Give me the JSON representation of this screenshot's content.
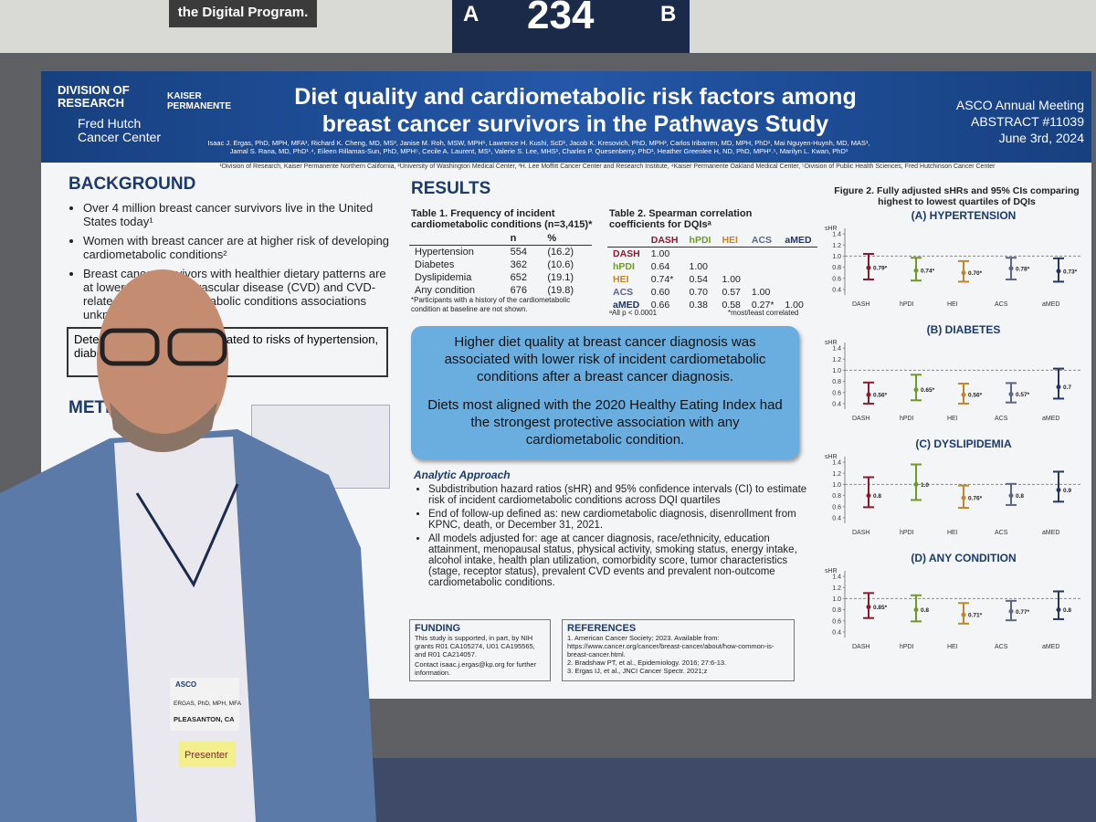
{
  "top_signs": {
    "program": "the Digital Program.",
    "board_left": "A",
    "board_number": "234",
    "board_right": "B"
  },
  "poster": {
    "header": {
      "org1": "DIVISION OF RESEARCH",
      "org2": "KAISER PERMANENTE",
      "org3": "Fred Hutch Cancer Center",
      "title_line1": "Diet quality and cardiometabolic risk factors among",
      "title_line2": "breast cancer survivors in the Pathways Study",
      "authors_line1": "Isaac J. Ergas, PhD, MPH, MFA¹, Richard K. Cheng, MD, MS², Janise M. Roh, MSW, MPH¹, Lawrence H. Kushi, ScD¹, Jacob K. Kresovich, PhD, MPH³, Carlos Iribarren, MD, MPH, PhD¹, Mai Nguyen-Huynh, MD, MAS¹,",
      "authors_line2": "Jamal S. Rana, MD, PhD¹˒⁴, Eileen Rillamas-Sun, PhD, MPH⁵, Cecile A. Laurent, MS¹, Valerie S. Lee, MHS¹, Charles P. Quesenberry, PhD¹, Heather Greenlee H, ND, PhD, MPH²˒⁵, Marilyn L. Kwan, PhD¹",
      "meeting": "ASCO Annual Meeting",
      "abstract": "ABSTRACT #11039",
      "date": "June 3rd, 2024",
      "affiliations": "¹Division of Research, Kaiser Permanente Northern California, ²University of Washington Medical Center, ³H. Lee Moffitt Cancer Center and Research Institute, ⁴Kaiser Permanente Oakland Medical Center, ⁵Division of Public Health Sciences, Fred Hutchinson Cancer Center"
    },
    "background": {
      "heading": "BACKGROUND",
      "bullets": [
        "Over 4 million breast cancer survivors live in the United States today¹",
        "Women with breast cancer are at higher risk of developing cardiometabolic conditions²",
        "Breast cancer survivors with healthier dietary patterns are at lower risk of cardiovascular disease (CVD) and CVD-related risk of cardiometabolic conditions associations unknown.³"
      ],
      "objective": "Determine if diet quality is related to risks of hypertension, diabetes and dyslipidemia."
    },
    "methods": {
      "heading": "METHODS"
    },
    "results": {
      "heading": "RESULTS",
      "table1": {
        "caption": "Table 1. Frequency of incident cardiometabolic conditions (n=3,415)*",
        "columns": [
          "n",
          "%"
        ],
        "rows": [
          [
            "Hypertension",
            "554",
            "(16.2)"
          ],
          [
            "Diabetes",
            "362",
            "(10.6)"
          ],
          [
            "Dyslipidemia",
            "652",
            "(19.1)"
          ],
          [
            "Any condition",
            "676",
            "(19.8)"
          ]
        ],
        "note": "*Participants with a history of the cardiometabolic condition at baseline are not shown."
      },
      "table2": {
        "caption": "Table 2. Spearman correlation coefficients for DQIsᵃ",
        "columns": [
          "DASH",
          "hPDI",
          "HEI",
          "ACS",
          "aMED"
        ],
        "rows": [
          [
            "DASH",
            "1.00"
          ],
          [
            "hPDI",
            "0.64",
            "1.00"
          ],
          [
            "HEI",
            "0.74*",
            "0.54",
            "1.00"
          ],
          [
            "ACS",
            "0.60",
            "0.70",
            "0.57",
            "1.00"
          ],
          [
            "aMED",
            "0.66",
            "0.38",
            "0.58",
            "0.27*",
            "1.00"
          ]
        ],
        "note_left": "ᵃAll p < 0.0001",
        "note_right": "*most/least correlated"
      },
      "callout1": "Higher diet quality at breast cancer diagnosis was associated with lower risk of incident cardiometabolic conditions after a breast cancer diagnosis.",
      "callout2": "Diets most aligned with the 2020 Healthy Eating Index had the strongest protective association with any cardiometabolic condition.",
      "approach_heading": "Analytic Approach",
      "approach_bullets": [
        "Subdistribution hazard ratios (sHR) and 95% confidence intervals (CI) to estimate risk of incident cardiometabolic conditions across DQI quartiles",
        "End of follow-up defined as: new cardiometabolic diagnosis, disenrollment from KPNC, death, or December 31, 2021.",
        "All models adjusted for: age at cancer diagnosis, race/ethnicity, education attainment, menopausal status, physical activity, smoking status, energy intake, alcohol intake, health plan utilization, comorbidity score, tumor characteristics (stage, receptor status), prevalent CVD events and prevalent non-outcome cardiometabolic conditions."
      ]
    },
    "funding": {
      "heading": "FUNDING",
      "text": "This study is supported, in part, by NIH grants R01 CA105274, U01 CA195565, and R01 CA214057.",
      "contact": "Contact isaac.j.ergas@kp.org for further information."
    },
    "references": {
      "heading": "REFERENCES",
      "items": [
        "1. American Cancer Society; 2023. Available from: https://www.cancer.org/cancer/breast-cancer/about/how-common-is-breast-cancer.html.",
        "2. Bradshaw PT, et al., Epidemiology. 2016; 27:6-13.",
        "3. Ergas IJ, et al., JNCI Cancer Spectr. 2021;z"
      ]
    },
    "badge": {
      "org": "ASCO",
      "name": "ERGAS, PhD, MPH, MFA",
      "city": "PLEASANTON, CA",
      "role": "Presenter"
    }
  },
  "chart_data": {
    "type": "forest",
    "title": "Figure 2. Fully adjusted sHRs and 95% CIs comparing highest to lowest quartiles of DQIs",
    "y_label": "sHR",
    "categories": [
      "DASH",
      "hPDI",
      "HEI",
      "ACS",
      "aMED"
    ],
    "colors": [
      "#8b1a2e",
      "#6f9a26",
      "#c0862a",
      "#5b6685",
      "#24365f"
    ],
    "ylim": [
      0.3,
      1.5
    ],
    "yticks": [
      0.4,
      0.6,
      0.8,
      {
        "value": 1.0,
        "label": "1.0"
      },
      1.2,
      1.4
    ],
    "reference": 1,
    "panels": [
      {
        "title": "(A) HYPERTENSION",
        "values": [
          0.79,
          0.74,
          0.7,
          0.78,
          0.73
        ],
        "value_labels": [
          "0.79*",
          "0.74*",
          "0.70*",
          "0.78*",
          "0.73*"
        ],
        "low": [
          0.58,
          0.56,
          0.54,
          0.58,
          0.54
        ],
        "high": [
          1.04,
          0.97,
          0.91,
          0.97,
          0.96
        ]
      },
      {
        "title": "(B) DIABETES",
        "values": [
          0.56,
          0.65,
          0.56,
          0.57,
          0.7
        ],
        "value_labels": [
          "0.56*",
          "0.65*",
          "0.56*",
          "0.57*",
          "0.7"
        ],
        "low": [
          0.4,
          0.46,
          0.4,
          0.42,
          0.49
        ],
        "high": [
          0.78,
          0.92,
          0.76,
          0.77,
          1.03
        ]
      },
      {
        "title": "(C) DYSLIPIDEMIA",
        "values": [
          0.8,
          1.0,
          0.76,
          0.8,
          0.9
        ],
        "value_labels": [
          "0.8",
          "1.0",
          "0.76*",
          "0.8",
          "0.9"
        ],
        "low": [
          0.59,
          0.72,
          0.58,
          0.63,
          0.69
        ],
        "high": [
          1.13,
          1.36,
          0.98,
          1.01,
          1.23
        ]
      },
      {
        "title": "(D) ANY CONDITION",
        "values": [
          0.85,
          0.8,
          0.71,
          0.77,
          0.8
        ],
        "value_labels": [
          "0.85*",
          "0.8",
          "0.71*",
          "0.77*",
          "0.8"
        ],
        "low": [
          0.65,
          0.59,
          0.55,
          0.61,
          0.63
        ],
        "high": [
          1.1,
          1.06,
          0.92,
          0.96,
          1.13
        ]
      }
    ]
  }
}
